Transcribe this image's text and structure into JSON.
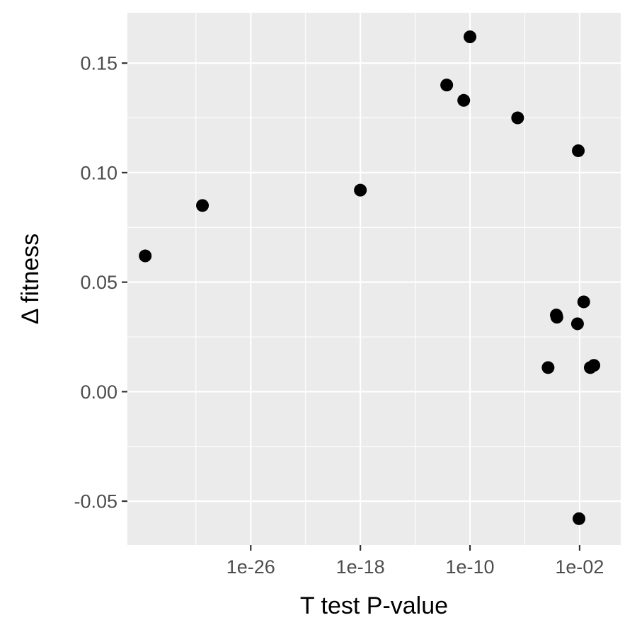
{
  "chart_data": {
    "type": "scatter",
    "title": "",
    "xlabel": "T test P-value",
    "ylabel": "Δ fitness",
    "x_scale": "log10",
    "xlim": [
      1e-35,
      10.0
    ],
    "ylim": [
      -0.07,
      0.173
    ],
    "x_ticks": [
      {
        "value": 1e-26,
        "label": "1e-26"
      },
      {
        "value": 1e-18,
        "label": "1e-18"
      },
      {
        "value": 1e-10,
        "label": "1e-10"
      },
      {
        "value": 0.01,
        "label": "1e-02"
      }
    ],
    "x_minor_ticks": [
      1e-30,
      1e-22,
      1e-14,
      1e-06
    ],
    "y_ticks": [
      {
        "value": -0.05,
        "label": "-0.05"
      },
      {
        "value": 0.0,
        "label": "0.00"
      },
      {
        "value": 0.05,
        "label": "0.05"
      },
      {
        "value": 0.1,
        "label": "0.10"
      },
      {
        "value": 0.15,
        "label": "0.15"
      }
    ],
    "y_minor_ticks": [
      -0.025,
      0.025,
      0.075,
      0.125
    ],
    "grid": true,
    "background": "#ebebeb",
    "point_color": "#000000",
    "points": [
      {
        "x": 2e-34,
        "y": 0.062
      },
      {
        "x": 3e-30,
        "y": 0.085
      },
      {
        "x": 1e-18,
        "y": 0.092
      },
      {
        "x": 2e-12,
        "y": 0.14
      },
      {
        "x": 3.5e-11,
        "y": 0.133
      },
      {
        "x": 1e-10,
        "y": 0.162
      },
      {
        "x": 3e-07,
        "y": 0.125
      },
      {
        "x": 0.008,
        "y": 0.11
      },
      {
        "x": 5e-05,
        "y": 0.011
      },
      {
        "x": 0.0002,
        "y": 0.035
      },
      {
        "x": 0.00022,
        "y": 0.034
      },
      {
        "x": 0.007,
        "y": 0.031
      },
      {
        "x": 0.02,
        "y": 0.041
      },
      {
        "x": 0.009,
        "y": -0.058
      },
      {
        "x": 0.06,
        "y": 0.011
      },
      {
        "x": 0.11,
        "y": 0.012
      }
    ]
  }
}
